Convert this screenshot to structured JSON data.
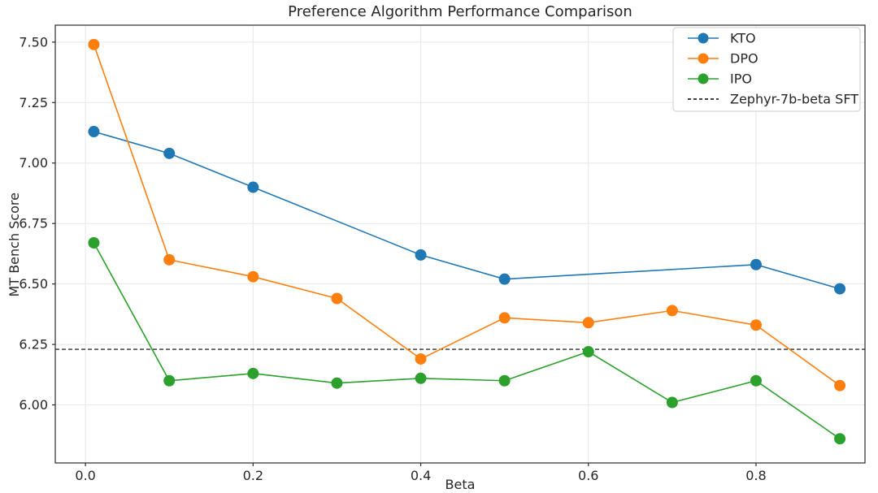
{
  "figure": {
    "title": "Preference Algorithm Performance Comparison",
    "xlabel": "Beta",
    "ylabel": "MT Bench Score"
  },
  "chart_data": {
    "type": "line",
    "title": "Preference Algorithm Performance Comparison",
    "xlabel": "Beta",
    "ylabel": "MT Bench Score",
    "grid": true,
    "legend_position": "upper right",
    "xlim": [
      -0.036,
      0.93
    ],
    "ylim": [
      5.76,
      7.57
    ],
    "x_ticks": [
      0.0,
      0.2,
      0.4,
      0.6,
      0.8
    ],
    "x_tick_labels": [
      "0.0",
      "0.2",
      "0.4",
      "0.6",
      "0.8"
    ],
    "y_ticks": [
      6.0,
      6.25,
      6.5,
      6.75,
      7.0,
      7.25,
      7.5
    ],
    "y_tick_labels": [
      "6.00",
      "6.25",
      "6.50",
      "6.75",
      "7.00",
      "7.25",
      "7.50"
    ],
    "series": [
      {
        "name": "KTO",
        "color": "#1f77b4",
        "x": [
          0.01,
          0.1,
          0.2,
          0.4,
          0.5,
          0.8,
          0.9
        ],
        "y": [
          7.13,
          7.04,
          6.9,
          6.62,
          6.52,
          6.58,
          6.48
        ]
      },
      {
        "name": "DPO",
        "color": "#ff7f0e",
        "x": [
          0.01,
          0.1,
          0.2,
          0.3,
          0.4,
          0.5,
          0.6,
          0.7,
          0.8,
          0.9
        ],
        "y": [
          7.49,
          6.6,
          6.53,
          6.44,
          6.19,
          6.36,
          6.34,
          6.39,
          6.33,
          6.08
        ]
      },
      {
        "name": "IPO",
        "color": "#2ca02c",
        "x": [
          0.01,
          0.1,
          0.2,
          0.3,
          0.4,
          0.5,
          0.6,
          0.7,
          0.8,
          0.9
        ],
        "y": [
          6.67,
          6.1,
          6.13,
          6.09,
          6.11,
          6.1,
          6.22,
          6.01,
          6.1,
          5.86
        ]
      }
    ],
    "baseline": {
      "name": "Zephyr-7b-beta SFT",
      "value": 6.23,
      "style": "dashed",
      "color": "#000000"
    },
    "style": {
      "grid_color": "#e7e7e7",
      "spine_color": "#2b2b2b",
      "tick_color": "#262626",
      "legend_border": "#cccccc",
      "background": "#ffffff"
    }
  }
}
